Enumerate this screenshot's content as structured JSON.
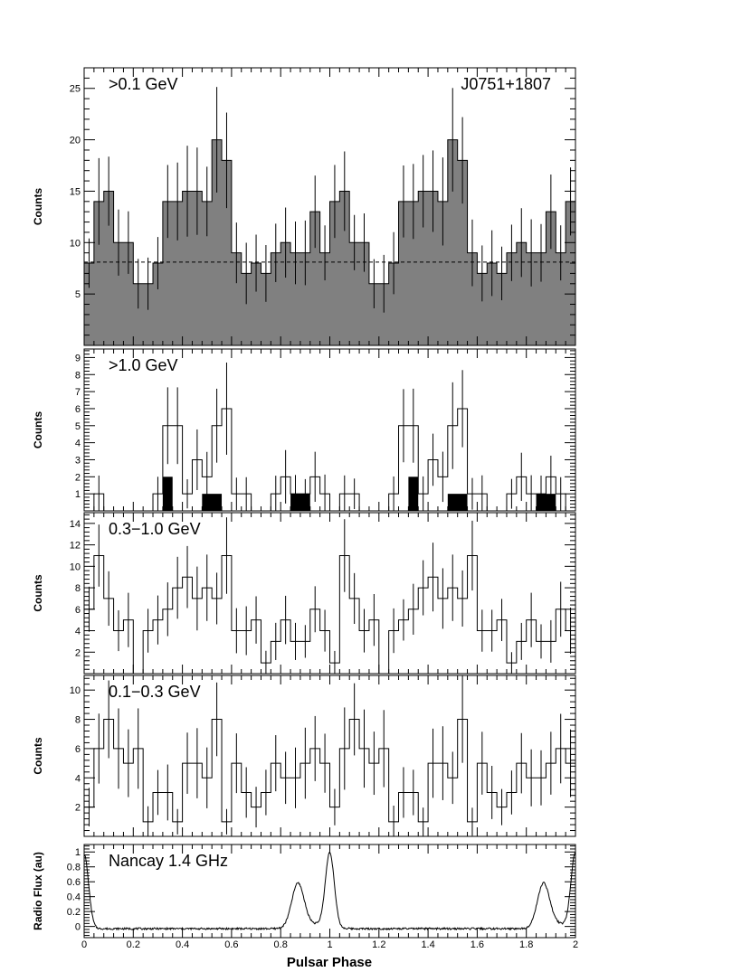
{
  "chart_data": [
    {
      "type": "histogram",
      "panel_label": ">0.1 GeV",
      "source_label": "J0751+1807",
      "ylabel": "Counts",
      "xlim": [
        0,
        2
      ],
      "ylim": [
        0,
        27
      ],
      "yticks": [
        5,
        10,
        15,
        20,
        25
      ],
      "fill_color": "#808080",
      "background_level": 8.1,
      "x_step": 0.04,
      "values": [
        8,
        14,
        15,
        10,
        10,
        6,
        6,
        8,
        14,
        14,
        15,
        15,
        14,
        20,
        18,
        9,
        7,
        8,
        7,
        9,
        10,
        9,
        9,
        13,
        9,
        14,
        15,
        10,
        10,
        6,
        6,
        8,
        14,
        14,
        15,
        15,
        14,
        20,
        18,
        9,
        7,
        8,
        7,
        9,
        10,
        9,
        9,
        13,
        9,
        14
      ]
    },
    {
      "type": "histogram",
      "panel_label": ">1.0 GeV",
      "ylabel": "Counts",
      "xlim": [
        0,
        2
      ],
      "ylim": [
        0,
        9.5
      ],
      "yticks": [
        1,
        2,
        3,
        4,
        5,
        6,
        7,
        8,
        9
      ],
      "x_step": 0.04,
      "values": [
        0,
        1,
        0,
        0,
        0,
        0,
        0,
        1,
        5,
        5,
        1,
        3,
        2,
        5,
        6,
        1,
        1,
        0,
        0,
        1,
        2,
        1,
        1,
        2,
        1,
        0,
        1,
        1,
        0,
        0,
        0,
        1,
        5,
        5,
        1,
        3,
        2,
        5,
        6,
        1,
        1,
        0,
        0,
        1,
        2,
        1,
        1,
        2,
        1,
        0
      ],
      "bar_color": "#000000",
      "filled_bars": [
        {
          "x0": 0.32,
          "x1": 0.36,
          "value": 2
        },
        {
          "x0": 0.48,
          "x1": 0.56,
          "value": 1
        },
        {
          "x0": 0.84,
          "x1": 0.92,
          "value": 1
        },
        {
          "x0": 1.32,
          "x1": 1.36,
          "value": 2
        },
        {
          "x0": 1.48,
          "x1": 1.56,
          "value": 1
        },
        {
          "x0": 1.84,
          "x1": 1.92,
          "value": 1
        }
      ]
    },
    {
      "type": "histogram",
      "panel_label": "0.3−1.0 GeV",
      "ylabel": "Counts",
      "xlim": [
        0,
        2
      ],
      "ylim": [
        0,
        15
      ],
      "yticks": [
        2,
        4,
        6,
        8,
        10,
        12,
        14
      ],
      "x_step": 0.04,
      "values": [
        6,
        11,
        7,
        4,
        5,
        0,
        4,
        5,
        6,
        8,
        9,
        7,
        8,
        7,
        11,
        4,
        4,
        5,
        1,
        3,
        5,
        3,
        3,
        6,
        4,
        1,
        11,
        7,
        4,
        5,
        0,
        4,
        5,
        6,
        8,
        9,
        7,
        8,
        7,
        11,
        4,
        4,
        5,
        1,
        3,
        5,
        3,
        3,
        6,
        4
      ]
    },
    {
      "type": "histogram",
      "panel_label": "0.1−0.3 GeV",
      "ylabel": "Counts",
      "xlim": [
        0,
        2
      ],
      "ylim": [
        0,
        11
      ],
      "yticks": [
        2,
        4,
        6,
        8,
        10
      ],
      "x_step": 0.04,
      "values": [
        2,
        6,
        8,
        6,
        5,
        6,
        1,
        3,
        3,
        1,
        5,
        5,
        4,
        8,
        1,
        5,
        3,
        2,
        3,
        5,
        4,
        4,
        5,
        6,
        5,
        2,
        6,
        8,
        6,
        5,
        6,
        1,
        3,
        3,
        1,
        5,
        5,
        4,
        8,
        1,
        5,
        3,
        2,
        3,
        5,
        4,
        4,
        5,
        6,
        5
      ]
    },
    {
      "type": "line",
      "panel_label": "Nancay 1.4 GHz",
      "ylabel": "Radio Flux (au)",
      "xlabel": "Pulsar Phase",
      "xlim": [
        0,
        2
      ],
      "ylim": [
        -0.15,
        1.1
      ],
      "xticks": [
        0,
        0.2,
        0.4,
        0.6,
        0.8,
        1,
        1.2,
        1.4,
        1.6,
        1.8,
        2
      ],
      "xtick_labels": [
        "0",
        "0.2",
        "0.4",
        "0.6",
        "0.8",
        "1",
        "1.2",
        "1.4",
        "1.6",
        "1.8",
        "2"
      ],
      "yticks": [
        0,
        0.2,
        0.4,
        0.6,
        0.8,
        1
      ],
      "ytick_labels": [
        "0",
        "0.2",
        "0.4",
        "0.6",
        "0.8",
        "1"
      ],
      "baseline": -0.03,
      "peaks": [
        {
          "x": 0.87,
          "height": 0.58,
          "width": 0.025
        },
        {
          "x": 1.0,
          "height": 1.0,
          "width": 0.018
        },
        {
          "x": 1.87,
          "height": 0.58,
          "width": 0.025
        },
        {
          "x": 2.0,
          "height": 1.0,
          "width": 0.018
        },
        {
          "x": 0.0,
          "height": 1.0,
          "width": 0.018
        }
      ]
    }
  ]
}
